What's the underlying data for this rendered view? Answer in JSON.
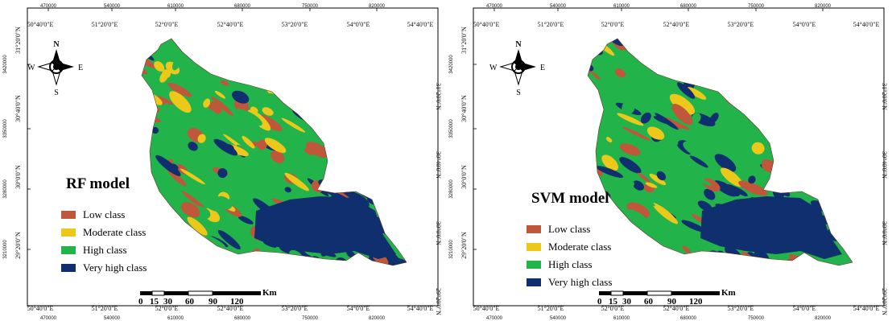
{
  "colors": {
    "low": "#c0573a",
    "moderate": "#ecc81a",
    "high": "#22b34a",
    "very_high": "#0f2f6e"
  },
  "panels": [
    {
      "title": "RF model",
      "legend": [
        "Low class",
        "Moderate class",
        "High class",
        "Very high class"
      ],
      "scale_label": "Km",
      "scale_ticks": [
        "0",
        "15",
        "30",
        "60",
        "90",
        "120"
      ]
    },
    {
      "title": "SVM model",
      "legend": [
        "Low class",
        "Moderate class",
        "High class",
        "Very high class"
      ],
      "scale_label": "Km",
      "scale_ticks": [
        "0",
        "15",
        "30",
        "60",
        "90",
        "120"
      ]
    }
  ],
  "grid": {
    "utm_x": [
      "470000",
      "540000",
      "610000",
      "680000",
      "750000",
      "820000"
    ],
    "lon": [
      "50°40'0\"E",
      "51°20'0\"E",
      "52°0'0\"E",
      "52°40'0\"E",
      "53°20'0\"E",
      "54°0'0\"E",
      "54°40'0\"E"
    ],
    "utm_y": [
      "3420000",
      "3350000",
      "3280000",
      "3210000"
    ],
    "lat": [
      "31°20'0\"N",
      "30°40'0\"N",
      "30°0'0\"N",
      "29°20'0\"N"
    ]
  },
  "compass": {
    "n": "N",
    "s": "S",
    "e": "E",
    "w": "W"
  }
}
